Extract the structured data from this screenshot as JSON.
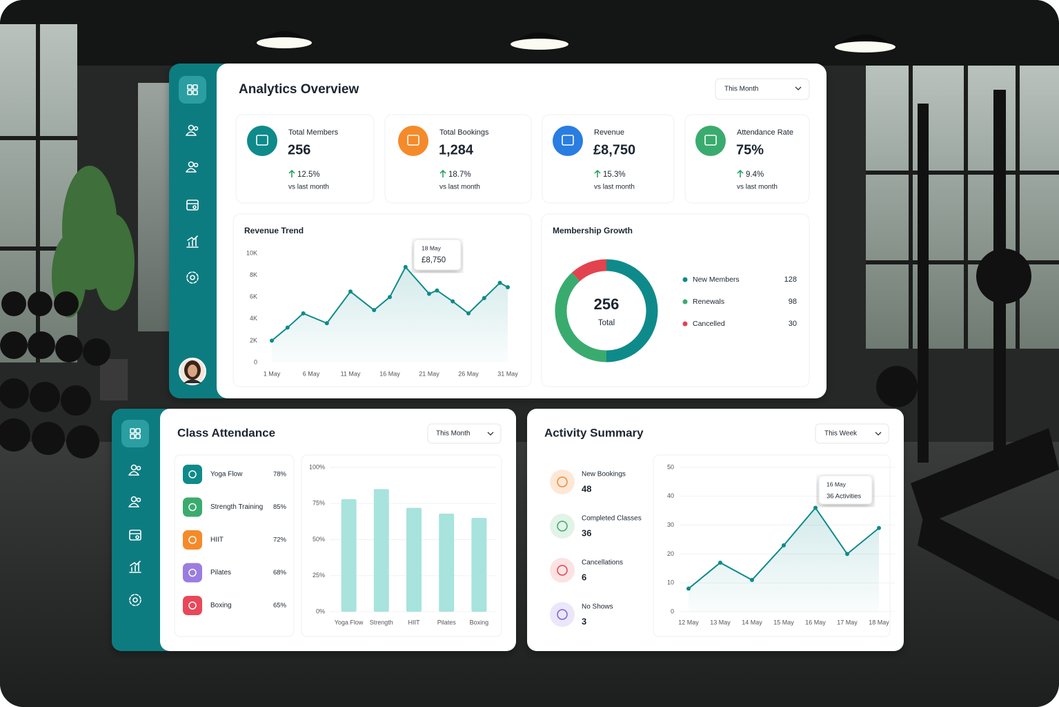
{
  "overview": {
    "title": "Analytics Overview",
    "period": "This Month",
    "kpis": [
      {
        "label": "Total Members",
        "value": "256",
        "change": "12.5%",
        "note": "vs last month"
      },
      {
        "label": "Total Bookings",
        "value": "1,284",
        "change": "18.7%",
        "note": "vs last month"
      },
      {
        "label": "Revenue",
        "value": "£8,750",
        "change": "15.3%",
        "note": "vs last month"
      },
      {
        "label": "Attendance Rate",
        "value": "75%",
        "change": "9.4%",
        "note": "vs last month"
      }
    ]
  },
  "class_attendance": {
    "title": "Class Attendance",
    "period": "This Month",
    "classes": [
      {
        "name": "Yoga Flow",
        "rate": "78%"
      },
      {
        "name": "Strength Training",
        "rate": "85%"
      },
      {
        "name": "HIIT",
        "rate": "72%"
      },
      {
        "name": "Pilates",
        "rate": "68%"
      },
      {
        "name": "Boxing",
        "rate": "65%"
      }
    ]
  },
  "activity_summary": {
    "title": "Activity Summary",
    "period": "This Week",
    "items": [
      {
        "label": "New Bookings",
        "value": "48"
      },
      {
        "label": "Completed Classes",
        "value": "36"
      },
      {
        "label": "Cancellations",
        "value": "6"
      },
      {
        "label": "No Shows",
        "value": "3"
      }
    ]
  },
  "chart_data": [
    {
      "type": "line",
      "title": "Revenue Trend",
      "color": "#0f8a8a",
      "grid": false,
      "x": [
        1,
        3,
        5,
        8,
        11,
        14,
        16,
        18,
        21,
        22,
        24,
        26,
        28,
        30,
        31
      ],
      "values": [
        2000,
        3200,
        4500,
        3600,
        6500,
        4800,
        6000,
        8750,
        6300,
        6600,
        5600,
        4500,
        5900,
        7300,
        6900
      ],
      "xlim": [
        1,
        31
      ],
      "xticks": [
        {
          "value": 1,
          "label": "1 May"
        },
        {
          "value": 6,
          "label": "6 May"
        },
        {
          "value": 11,
          "label": "11 May"
        },
        {
          "value": 16,
          "label": "16 May"
        },
        {
          "value": 21,
          "label": "21 May"
        },
        {
          "value": 26,
          "label": "26 May"
        },
        {
          "value": 31,
          "label": "31 May"
        }
      ],
      "ylim": [
        0,
        10000
      ],
      "yticks": [
        0,
        {
          "value": 2000,
          "label": "2K"
        },
        {
          "value": 4000,
          "label": "4K"
        },
        {
          "value": 6000,
          "label": "6K"
        },
        {
          "value": 8000,
          "label": "8K"
        },
        {
          "value": 10000,
          "label": "10K"
        }
      ],
      "annotation": {
        "date": "18 May",
        "text": "£8,750"
      }
    },
    {
      "type": "donut",
      "title": "Membership Growth",
      "categories": [
        "New Members",
        "Renewals",
        "Cancelled"
      ],
      "values": [
        128,
        98,
        30
      ],
      "colors": [
        "#0f8a8a",
        "#3aab6e",
        "#e2434f"
      ],
      "center_value": 256,
      "center_label": "Total"
    },
    {
      "type": "bar",
      "color": "#a8e3dd",
      "grid": true,
      "categories": [
        "Yoga Flow",
        "Strength",
        "HIIT",
        "Pilates",
        "Boxing"
      ],
      "values": [
        78,
        85,
        72,
        68,
        65
      ],
      "ylim": [
        0,
        100
      ],
      "yticks": [
        {
          "value": 0,
          "label": "0%"
        },
        {
          "value": 25,
          "label": "25%"
        },
        {
          "value": 50,
          "label": "50%"
        },
        {
          "value": 75,
          "label": "75%"
        },
        {
          "value": 100,
          "label": "100%"
        }
      ]
    },
    {
      "type": "line",
      "color": "#0f8a8a",
      "grid": true,
      "categories": [
        "12 May",
        "13 May",
        "14 May",
        "15 May",
        "16 May",
        "17 May",
        "18 May"
      ],
      "values": [
        8,
        17,
        11,
        23,
        36,
        20,
        29
      ],
      "ylim": [
        0,
        50
      ],
      "yticks": [
        0,
        10,
        20,
        30,
        40,
        50
      ],
      "annotation": {
        "date": "16 May",
        "text": "36 Activities"
      }
    }
  ]
}
